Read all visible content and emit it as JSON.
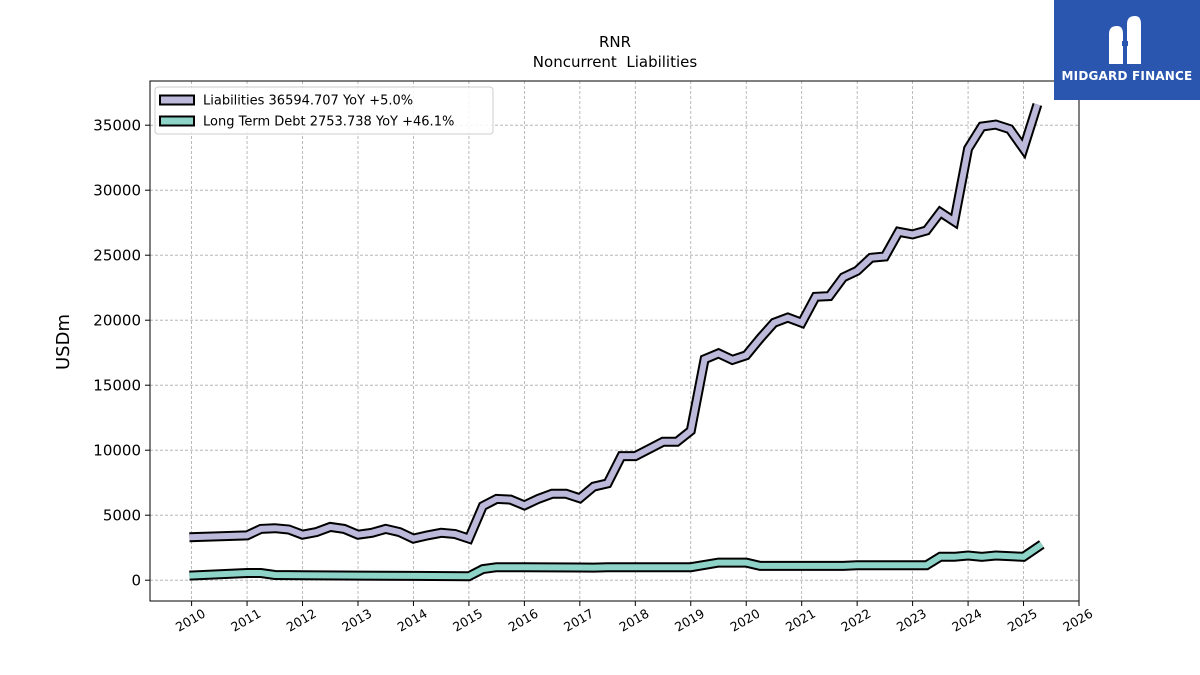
{
  "chart_data": {
    "type": "line",
    "title": "RNR",
    "subtitle": "Noncurrent  Liabilities",
    "ylabel": "USDm",
    "xlabel": "",
    "xlim": [
      2009.25,
      2026.0
    ],
    "ylim": [
      -1600,
      38400
    ],
    "x_ticks": [
      "2010",
      "2011",
      "2012",
      "2013",
      "2014",
      "2015",
      "2016",
      "2017",
      "2018",
      "2019",
      "2020",
      "2021",
      "2022",
      "2023",
      "2024",
      "2025",
      "2026"
    ],
    "y_ticks": [
      "0",
      "5000",
      "10000",
      "15000",
      "20000",
      "25000",
      "30000",
      "35000"
    ],
    "grid": true,
    "legend_position": "top-left",
    "series": [
      {
        "name": "Liabilities  36594.707 YoY +5.0%",
        "color": "#bcb9da",
        "points": [
          [
            2009.96,
            3300
          ],
          [
            2011.0,
            3450
          ],
          [
            2011.25,
            3950
          ],
          [
            2011.5,
            4000
          ],
          [
            2011.75,
            3900
          ],
          [
            2012.0,
            3500
          ],
          [
            2012.25,
            3700
          ],
          [
            2012.5,
            4100
          ],
          [
            2012.75,
            3950
          ],
          [
            2013.0,
            3500
          ],
          [
            2013.25,
            3650
          ],
          [
            2013.5,
            3950
          ],
          [
            2013.75,
            3700
          ],
          [
            2014.0,
            3200
          ],
          [
            2014.25,
            3450
          ],
          [
            2014.5,
            3650
          ],
          [
            2014.75,
            3550
          ],
          [
            2015.0,
            3200
          ],
          [
            2015.25,
            5700
          ],
          [
            2015.5,
            6250
          ],
          [
            2015.75,
            6200
          ],
          [
            2016.0,
            5750
          ],
          [
            2016.25,
            6250
          ],
          [
            2016.5,
            6650
          ],
          [
            2016.75,
            6650
          ],
          [
            2017.0,
            6300
          ],
          [
            2017.25,
            7200
          ],
          [
            2017.5,
            7450
          ],
          [
            2017.75,
            9550
          ],
          [
            2018.0,
            9550
          ],
          [
            2018.25,
            10100
          ],
          [
            2018.5,
            10650
          ],
          [
            2018.75,
            10650
          ],
          [
            2019.0,
            11500
          ],
          [
            2019.25,
            17000
          ],
          [
            2019.5,
            17450
          ],
          [
            2019.75,
            16950
          ],
          [
            2020.0,
            17300
          ],
          [
            2020.25,
            18600
          ],
          [
            2020.5,
            19800
          ],
          [
            2020.75,
            20200
          ],
          [
            2021.0,
            19800
          ],
          [
            2021.25,
            21800
          ],
          [
            2021.5,
            21850
          ],
          [
            2021.75,
            23300
          ],
          [
            2022.0,
            23800
          ],
          [
            2022.25,
            24800
          ],
          [
            2022.5,
            24900
          ],
          [
            2022.75,
            26800
          ],
          [
            2023.0,
            26600
          ],
          [
            2023.25,
            26900
          ],
          [
            2023.5,
            28300
          ],
          [
            2023.75,
            27600
          ],
          [
            2024.0,
            33200
          ],
          [
            2024.25,
            34900
          ],
          [
            2024.5,
            35050
          ],
          [
            2024.75,
            34700
          ],
          [
            2025.0,
            33200
          ],
          [
            2025.25,
            36594.707
          ]
        ]
      },
      {
        "name": "Long Term Debt  2753.738 YoY +46.1%",
        "color": "#8dd3c7",
        "points": [
          [
            2009.96,
            350
          ],
          [
            2011.0,
            550
          ],
          [
            2011.25,
            550
          ],
          [
            2011.5,
            400
          ],
          [
            2012.0,
            380
          ],
          [
            2013.0,
            350
          ],
          [
            2014.0,
            330
          ],
          [
            2015.0,
            300
          ],
          [
            2015.25,
            850
          ],
          [
            2015.5,
            1000
          ],
          [
            2016.0,
            1000
          ],
          [
            2017.0,
            980
          ],
          [
            2017.25,
            970
          ],
          [
            2017.5,
            1000
          ],
          [
            2018.0,
            1000
          ],
          [
            2019.0,
            1000
          ],
          [
            2019.5,
            1350
          ],
          [
            2020.0,
            1350
          ],
          [
            2020.25,
            1100
          ],
          [
            2021.0,
            1100
          ],
          [
            2021.75,
            1100
          ],
          [
            2022.0,
            1150
          ],
          [
            2022.25,
            1150
          ],
          [
            2023.0,
            1150
          ],
          [
            2023.25,
            1150
          ],
          [
            2023.5,
            1800
          ],
          [
            2023.75,
            1800
          ],
          [
            2024.0,
            1900
          ],
          [
            2024.25,
            1800
          ],
          [
            2024.5,
            1900
          ],
          [
            2025.0,
            1800
          ],
          [
            2025.33,
            2753.738
          ]
        ]
      }
    ]
  },
  "logo": {
    "text": "MIDGARD FINANCE",
    "background": "#2a56b0",
    "icon": "midgard-logo-icon"
  }
}
